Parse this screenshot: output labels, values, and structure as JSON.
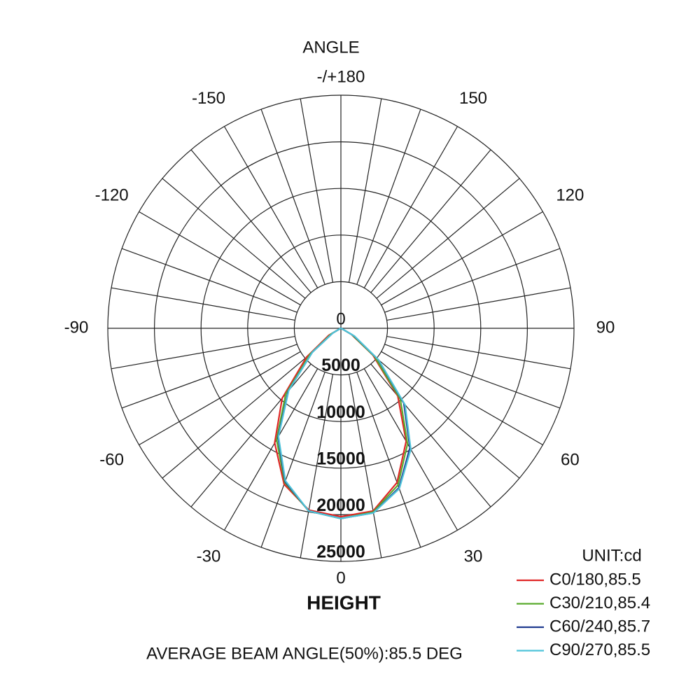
{
  "chart_data": {
    "type": "polar",
    "title": "ANGLE",
    "radial_axis_label": "HEIGHT",
    "unit_label": "UNIT:cd",
    "note": "AVERAGE BEAM ANGLE(50%):85.5 DEG",
    "theta": [
      -90,
      -80,
      -70,
      -60,
      -50,
      -40,
      -30,
      -20,
      -10,
      0,
      10,
      20,
      30,
      40,
      50,
      60,
      70,
      80,
      90
    ],
    "rlim": [
      0,
      25000
    ],
    "rticks": [
      0,
      5000,
      10000,
      15000,
      20000,
      25000
    ],
    "angle_ticks": [
      0,
      30,
      60,
      90,
      120,
      150,
      {
        "value": 180,
        "label": "-/+180"
      },
      -30,
      -60,
      -90,
      -120,
      -150
    ],
    "grid": true,
    "legend": "lower-right",
    "series": [
      {
        "name": "C0/180,85.5",
        "color": "#e02626",
        "values": [
          0,
          0,
          100,
          1500,
          4800,
          9800,
          14200,
          17800,
          19800,
          20200,
          19900,
          17600,
          14000,
          9500,
          4500,
          1300,
          100,
          0,
          0
        ]
      },
      {
        "name": "C30/210,85.4",
        "color": "#5aab2e",
        "values": [
          0,
          0,
          100,
          1200,
          4300,
          9200,
          13800,
          17600,
          19900,
          20400,
          20000,
          17900,
          14300,
          9900,
          4700,
          1400,
          100,
          0,
          0
        ]
      },
      {
        "name": "C60/240,85.7",
        "color": "#1f3a8f",
        "values": [
          0,
          0,
          100,
          1000,
          4000,
          8800,
          13500,
          17500,
          19900,
          20400,
          20100,
          18200,
          14800,
          10500,
          5200,
          1600,
          100,
          0,
          0
        ]
      },
      {
        "name": "C90/270,85.5",
        "color": "#4fc3d9",
        "values": [
          0,
          0,
          100,
          1000,
          4000,
          8700,
          13400,
          17400,
          19900,
          20400,
          20100,
          18300,
          15000,
          10700,
          5300,
          1700,
          100,
          0,
          0
        ]
      }
    ]
  }
}
